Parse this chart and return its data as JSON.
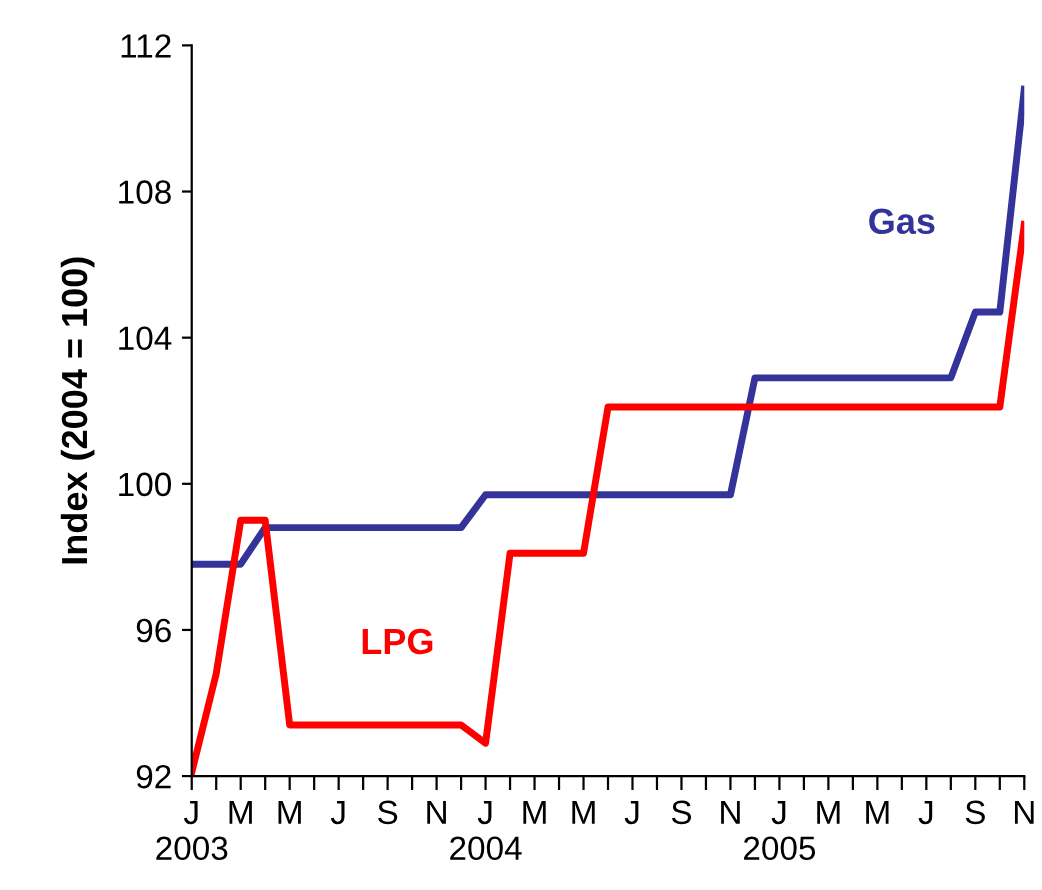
{
  "chart_data": {
    "type": "line",
    "ylabel": "Index (2004 = 100)",
    "categories": [
      "J\n2003",
      null,
      "M",
      null,
      "M",
      null,
      "J",
      null,
      "S",
      null,
      "N",
      null,
      "J\n2004",
      null,
      "M",
      null,
      "M",
      null,
      "J",
      null,
      "S",
      null,
      "N",
      null,
      "J\n2005",
      null,
      "M",
      null,
      "M",
      null,
      "J",
      null,
      "S",
      null,
      "N"
    ],
    "series": [
      {
        "name": "Gas",
        "color": "#333399",
        "values": [
          97.8,
          97.8,
          97.8,
          98.8,
          98.8,
          98.8,
          98.8,
          98.8,
          98.8,
          98.8,
          98.8,
          98.8,
          99.7,
          99.7,
          99.7,
          99.7,
          99.7,
          99.7,
          99.7,
          99.7,
          99.7,
          99.7,
          99.7,
          102.9,
          102.9,
          102.9,
          102.9,
          102.9,
          102.9,
          102.9,
          102.9,
          102.9,
          104.7,
          104.7,
          110.8
        ]
      },
      {
        "name": "LPG",
        "color": "#ff0000",
        "values": [
          92.1,
          94.8,
          99.0,
          99.0,
          93.4,
          93.4,
          93.4,
          93.4,
          93.4,
          93.4,
          93.4,
          93.4,
          92.9,
          98.1,
          98.1,
          98.1,
          98.1,
          102.1,
          102.1,
          102.1,
          102.1,
          102.1,
          102.1,
          102.1,
          102.1,
          102.1,
          102.1,
          102.1,
          102.1,
          102.1,
          102.1,
          102.1,
          102.1,
          102.1,
          107.1
        ]
      }
    ],
    "ylim": [
      92,
      112
    ],
    "yticks": [
      92,
      96,
      100,
      104,
      108,
      112
    ],
    "grid": false,
    "legend": false,
    "marker": "none",
    "line_style": "solid"
  }
}
